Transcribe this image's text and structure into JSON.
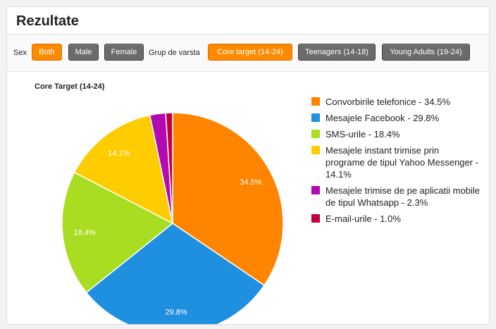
{
  "header": {
    "title": "Rezultate"
  },
  "filters": {
    "sex_label": "Sex",
    "sex_options": [
      {
        "label": "Both",
        "active": true
      },
      {
        "label": "Male",
        "active": false
      },
      {
        "label": "Female",
        "active": false
      }
    ],
    "age_label": "Grup de varsta",
    "age_options": [
      {
        "label": "Core target (14-24)",
        "active": true
      },
      {
        "label": "Teenagers (14-18)",
        "active": false
      },
      {
        "label": "Young Adults (19-24)",
        "active": false
      }
    ]
  },
  "chart_data": {
    "type": "pie",
    "title": "Core Target (14-24)",
    "legend_position": "right",
    "slices": [
      {
        "label": "Convorbirile telefonice - 34.5%",
        "value": 34.5,
        "data_label": "34.5%",
        "color": "#ff8400"
      },
      {
        "label": "Mesajele Facebook - 29.8%",
        "value": 29.8,
        "data_label": "29.8%",
        "color": "#1f8fe0"
      },
      {
        "label": "SMS-urile - 18.4%",
        "value": 18.4,
        "data_label": "18.4%",
        "color": "#a8dd22"
      },
      {
        "label": "Mesajele instant trimise prin programe de tipul Yahoo Messenger - 14.1%",
        "value": 14.1,
        "data_label": "14.1%",
        "color": "#ffcc00"
      },
      {
        "label": "Mesajele trimise de pe aplicatii mobile de tipul Whatsapp - 2.3%",
        "value": 2.3,
        "data_label": "",
        "color": "#b10ab1"
      },
      {
        "label": "E-mail-urile - 1.0%",
        "value": 1.0,
        "data_label": "",
        "color": "#c0003c"
      }
    ]
  }
}
